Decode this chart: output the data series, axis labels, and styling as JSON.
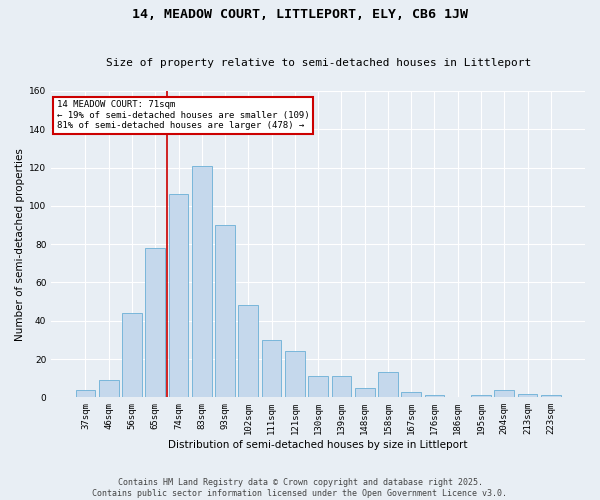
{
  "title": "14, MEADOW COURT, LITTLEPORT, ELY, CB6 1JW",
  "subtitle": "Size of property relative to semi-detached houses in Littleport",
  "xlabel": "Distribution of semi-detached houses by size in Littleport",
  "ylabel": "Number of semi-detached properties",
  "categories": [
    "37sqm",
    "46sqm",
    "56sqm",
    "65sqm",
    "74sqm",
    "83sqm",
    "93sqm",
    "102sqm",
    "111sqm",
    "121sqm",
    "130sqm",
    "139sqm",
    "148sqm",
    "158sqm",
    "167sqm",
    "176sqm",
    "186sqm",
    "195sqm",
    "204sqm",
    "213sqm",
    "223sqm"
  ],
  "values": [
    4,
    9,
    44,
    78,
    106,
    121,
    90,
    48,
    30,
    24,
    11,
    11,
    5,
    13,
    3,
    1,
    0,
    1,
    4,
    2,
    1
  ],
  "bar_color": "#c5d8ec",
  "bar_edge_color": "#6aafd6",
  "background_color": "#e8eef4",
  "grid_color": "#ffffff",
  "vline_index": 3.5,
  "vline_color": "#cc0000",
  "annotation_title": "14 MEADOW COURT: 71sqm",
  "annotation_line1": "← 19% of semi-detached houses are smaller (109)",
  "annotation_line2": "81% of semi-detached houses are larger (478) →",
  "annotation_box_color": "#ffffff",
  "annotation_box_edge": "#cc0000",
  "footer_line1": "Contains HM Land Registry data © Crown copyright and database right 2025.",
  "footer_line2": "Contains public sector information licensed under the Open Government Licence v3.0.",
  "ylim": [
    0,
    160
  ],
  "yticks": [
    0,
    20,
    40,
    60,
    80,
    100,
    120,
    140,
    160
  ],
  "title_fontsize": 9.5,
  "subtitle_fontsize": 8,
  "axis_label_fontsize": 7.5,
  "tick_fontsize": 6.5,
  "footer_fontsize": 6,
  "annot_fontsize": 6.5
}
